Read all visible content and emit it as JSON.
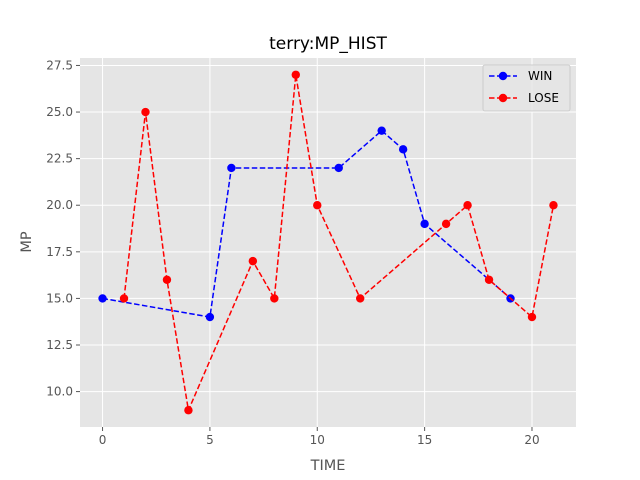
{
  "chart_data": {
    "type": "line",
    "title": "terry:MP_HIST",
    "xlabel": "TIME",
    "ylabel": "MP",
    "xlim": [
      -1.05,
      22.05
    ],
    "ylim": [
      8.1,
      27.9
    ],
    "xticks": [
      0,
      5,
      10,
      15,
      20
    ],
    "xtick_labels": [
      "0",
      "5",
      "10",
      "15",
      "20"
    ],
    "yticks": [
      10.0,
      12.5,
      15.0,
      17.5,
      20.0,
      22.5,
      25.0,
      27.5
    ],
    "ytick_labels": [
      "10.0",
      "12.5",
      "15.0",
      "17.5",
      "20.0",
      "22.5",
      "25.0",
      "27.5"
    ],
    "grid": true,
    "legend_position": "top-right",
    "series": [
      {
        "name": "WIN",
        "color": "#0000ff",
        "linestyle": "dashed",
        "marker": "circle",
        "x": [
          0,
          5,
          6,
          11,
          13,
          14,
          15,
          19
        ],
        "y": [
          15,
          14,
          22,
          22,
          24,
          23,
          19,
          15
        ]
      },
      {
        "name": "LOSE",
        "color": "#ff0000",
        "linestyle": "dashed",
        "marker": "circle",
        "x": [
          1,
          2,
          3,
          4,
          7,
          8,
          9,
          10,
          12,
          16,
          17,
          18,
          20,
          21
        ],
        "y": [
          15,
          25,
          16,
          9,
          17,
          15,
          27,
          20,
          15,
          19,
          20,
          16,
          14,
          20
        ]
      }
    ]
  }
}
